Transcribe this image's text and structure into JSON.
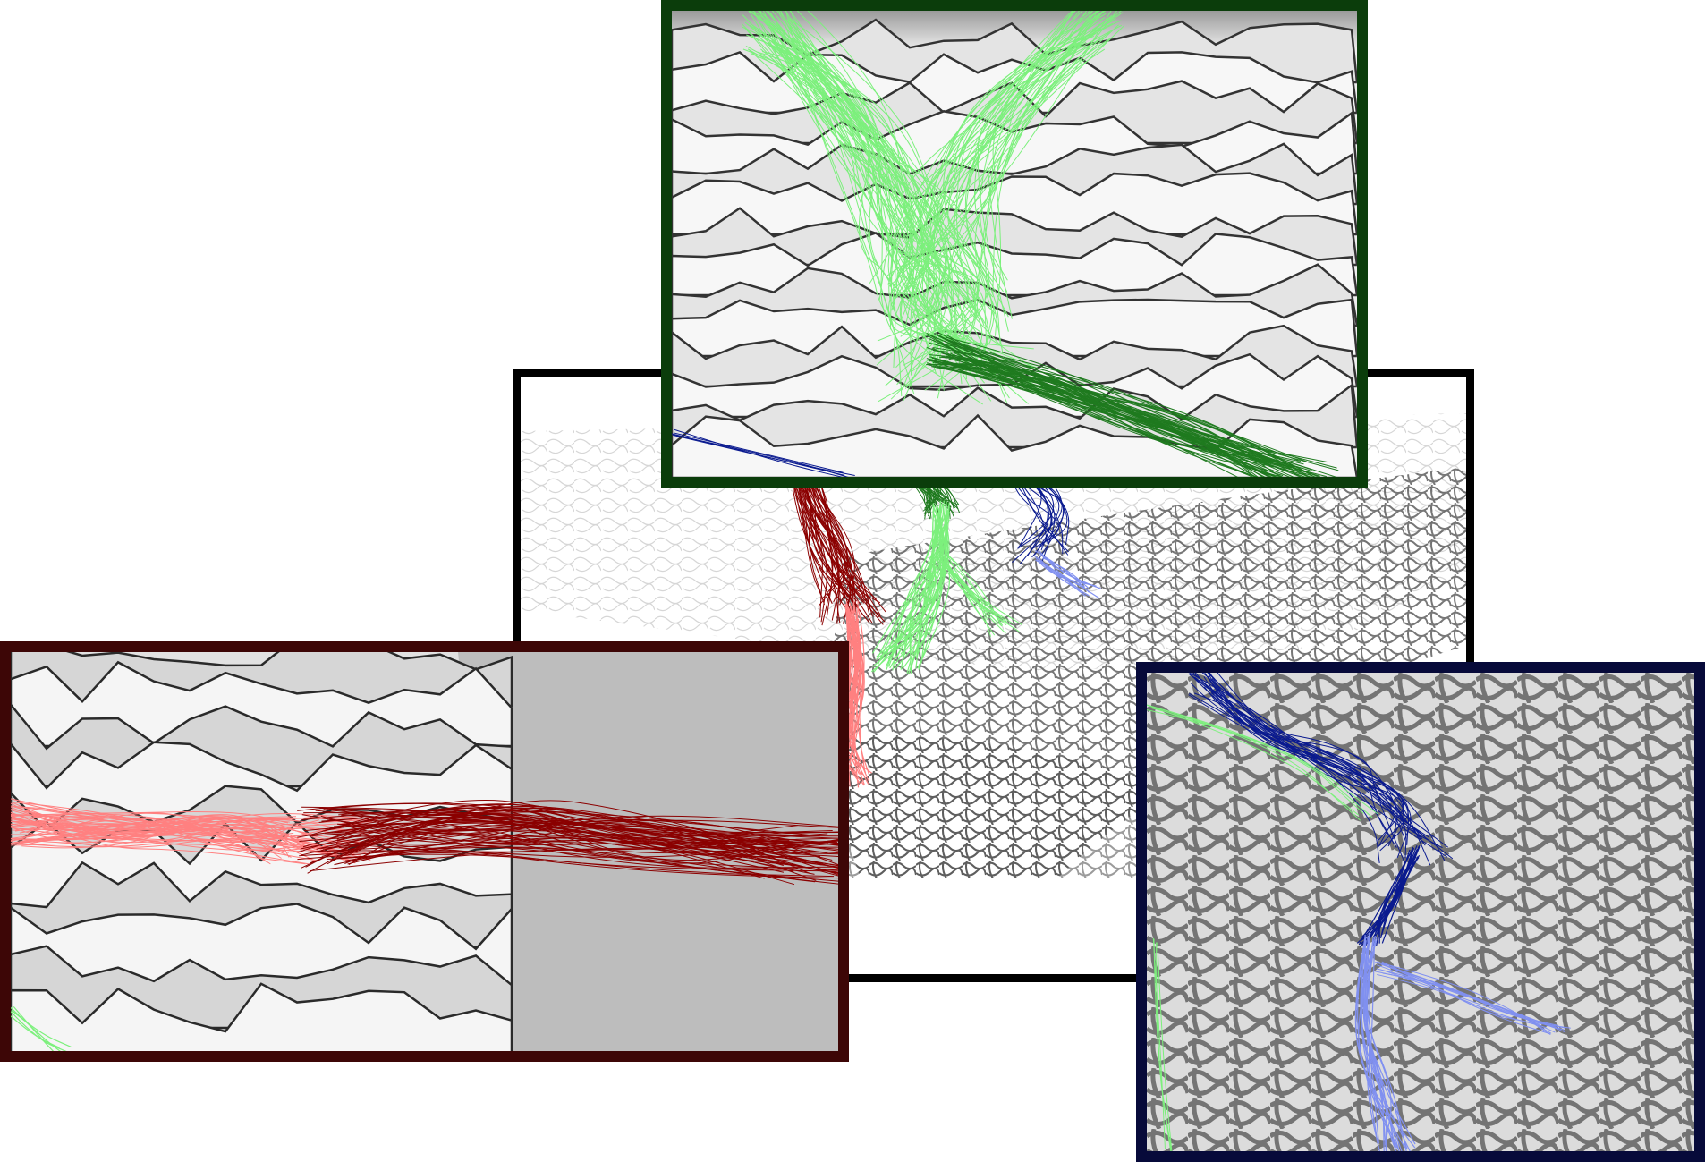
{
  "colors": {
    "overview_border": "#000000",
    "green_inset_border": "#0b3d0b",
    "red_inset_border": "#3d0606",
    "blue_inset_border": "#070a3a",
    "dark_green": "#1f7a1f",
    "light_green": "#7cf07c",
    "dark_red": "#8b0000",
    "light_red": "#ff8080",
    "dark_blue": "#0a1a8f",
    "light_blue": "#8090f0",
    "terrain_light": "#f4f4f4",
    "terrain_dark": "#3a3a3a"
  },
  "panels": {
    "overview": {
      "content": "terrain-overview-with-streamline-bundles"
    },
    "green_inset": {
      "content": "zoomed-terrain-green-streamlines"
    },
    "red_inset": {
      "content": "zoomed-terrain-red-streamlines"
    },
    "blue_inset": {
      "content": "zoomed-terrain-blue-streamlines"
    }
  }
}
